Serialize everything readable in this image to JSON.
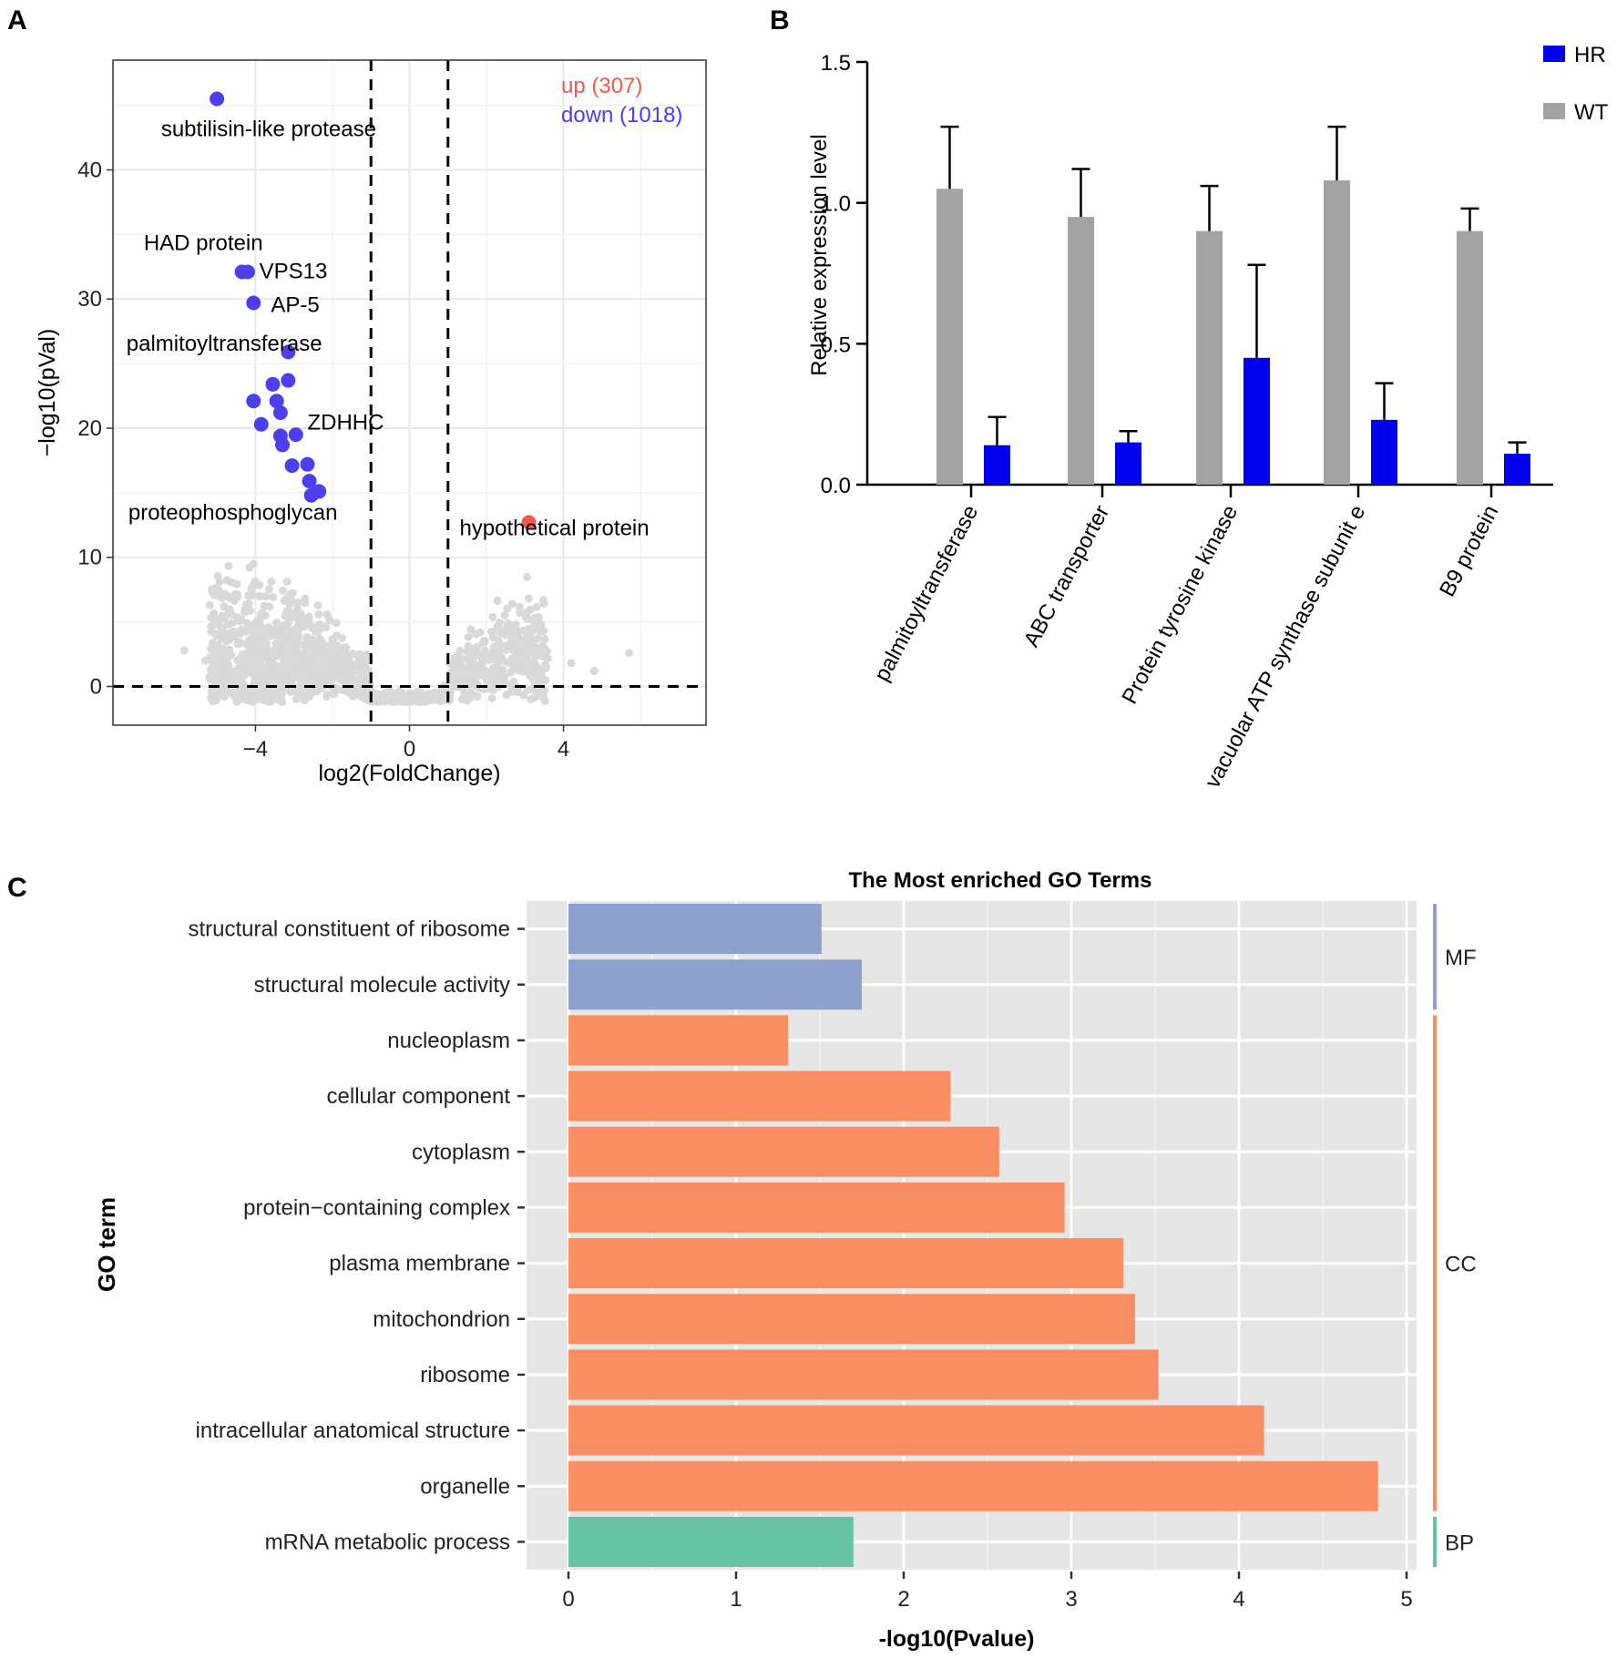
{
  "panels": {
    "a_letter": "A",
    "b_letter": "B",
    "c_letter": "C"
  },
  "chart_data": [
    {
      "panel": "A",
      "type": "scatter",
      "title": "",
      "xlabel": "log2(FoldChange)",
      "ylabel": "−log10(pVal)",
      "xlim": [
        -7.7,
        7.7
      ],
      "ylim": [
        -3,
        48.5
      ],
      "xticks": [
        -4,
        0,
        4
      ],
      "xtick_labels": [
        "−4",
        "0",
        "4"
      ],
      "yticks": [
        0,
        10,
        20,
        30,
        40
      ],
      "ytick_labels": [
        "0",
        "10",
        "20",
        "30",
        "40"
      ],
      "grid": true,
      "thresholds": {
        "x": [
          -1,
          1
        ],
        "y": 0
      },
      "legend": {
        "up_label": "up (307)",
        "down_label": "down (1018)",
        "placement": "top-right"
      },
      "colors": {
        "up": "#f05a46",
        "down": "#4b3ff0",
        "ns": "#d9d9d9",
        "threshold": "#000000"
      },
      "up_points": [
        {
          "x": 3.1,
          "y": 12.7
        }
      ],
      "down_points": [
        {
          "x": -5.0,
          "y": 45.5
        },
        {
          "x": -4.35,
          "y": 32.1
        },
        {
          "x": -4.2,
          "y": 32.1
        },
        {
          "x": -4.05,
          "y": 29.7
        },
        {
          "x": -3.15,
          "y": 25.9
        },
        {
          "x": -3.55,
          "y": 23.4
        },
        {
          "x": -3.15,
          "y": 23.7
        },
        {
          "x": -4.05,
          "y": 22.1
        },
        {
          "x": -3.45,
          "y": 22.1
        },
        {
          "x": -3.35,
          "y": 21.2
        },
        {
          "x": -3.85,
          "y": 20.3
        },
        {
          "x": -3.35,
          "y": 19.4
        },
        {
          "x": -2.95,
          "y": 19.5
        },
        {
          "x": -3.3,
          "y": 18.7
        },
        {
          "x": -3.05,
          "y": 17.1
        },
        {
          "x": -2.65,
          "y": 17.2
        },
        {
          "x": -2.6,
          "y": 15.9
        },
        {
          "x": -2.35,
          "y": 15.1
        },
        {
          "x": -2.55,
          "y": 14.8
        }
      ],
      "labels": [
        {
          "text": "subtilisin-like protease",
          "x": -6.45,
          "y": 42.6
        },
        {
          "text": "HAD protein",
          "x": -6.9,
          "y": 33.8
        },
        {
          "text": "VPS13",
          "x": -3.9,
          "y": 31.6
        },
        {
          "text": "AP-5",
          "x": -3.6,
          "y": 29.0
        },
        {
          "text": "palmitoyltransferase",
          "x": -7.35,
          "y": 26.0
        },
        {
          "text": "ZDHHC",
          "x": -2.65,
          "y": 19.9
        },
        {
          "text": "proteophosphoglycan",
          "x": -7.3,
          "y": 12.9
        },
        {
          "text": "hypothetical protein",
          "x": 1.3,
          "y": 11.7
        }
      ]
    },
    {
      "panel": "B",
      "type": "bar",
      "title": "",
      "xlabel": "",
      "ylabel": "Relative expression level",
      "ylim": [
        0,
        1.5
      ],
      "yticks": [
        0,
        0.5,
        1.0,
        1.5
      ],
      "ytick_labels": [
        "0.0",
        "0.5",
        "1.0",
        "1.5"
      ],
      "categories": [
        "palmitoyltransferase",
        "ABC transporter",
        "Protein tyrosine kinase",
        "vacuolar ATP synthase subunit e",
        "B9 protein"
      ],
      "series": [
        {
          "name": "WT",
          "color": "#a3a3a6",
          "values": [
            1.05,
            0.95,
            0.9,
            1.08,
            0.9
          ],
          "errors": [
            0.22,
            0.17,
            0.16,
            0.19,
            0.08
          ]
        },
        {
          "name": "HR",
          "color": "#0000f0",
          "values": [
            0.14,
            0.15,
            0.45,
            0.23,
            0.11
          ],
          "errors": [
            0.1,
            0.04,
            0.33,
            0.13,
            0.04
          ]
        }
      ],
      "legend": {
        "items": [
          "HR",
          "WT"
        ],
        "placement": "top-right"
      }
    },
    {
      "panel": "C",
      "type": "bar",
      "orientation": "horizontal",
      "title": "The Most enriched GO Terms",
      "xlabel": "-log10(Pvalue)",
      "ylabel": "GO term",
      "xlim": [
        -0.25,
        5.08
      ],
      "xticks": [
        0,
        1,
        2,
        3,
        4,
        5
      ],
      "xtick_labels": [
        "0",
        "1",
        "2",
        "3",
        "4",
        "5"
      ],
      "grid": true,
      "categories": [
        "structural constituent of ribosome",
        "structural molecule activity",
        "nucleoplasm",
        "cellular component",
        "cytoplasm",
        "protein−containing complex",
        "plasma membrane",
        "mitochondrion",
        "ribosome",
        "intracellular anatomical structure",
        "organelle",
        "mRNA metabolic process"
      ],
      "values": [
        1.51,
        1.75,
        1.31,
        2.28,
        2.57,
        2.96,
        3.31,
        3.38,
        3.52,
        4.15,
        4.83,
        1.7
      ],
      "groups": [
        "MF",
        "MF",
        "CC",
        "CC",
        "CC",
        "CC",
        "CC",
        "CC",
        "CC",
        "CC",
        "CC",
        "BP"
      ],
      "group_labels": [
        {
          "name": "MF",
          "start": 0,
          "end": 1
        },
        {
          "name": "CC",
          "start": 2,
          "end": 10
        },
        {
          "name": "BP",
          "start": 11,
          "end": 11
        }
      ],
      "colors": {
        "MF": "#8ea0cb",
        "CC": "#fb8d62",
        "BP": "#65c2a5"
      }
    }
  ]
}
